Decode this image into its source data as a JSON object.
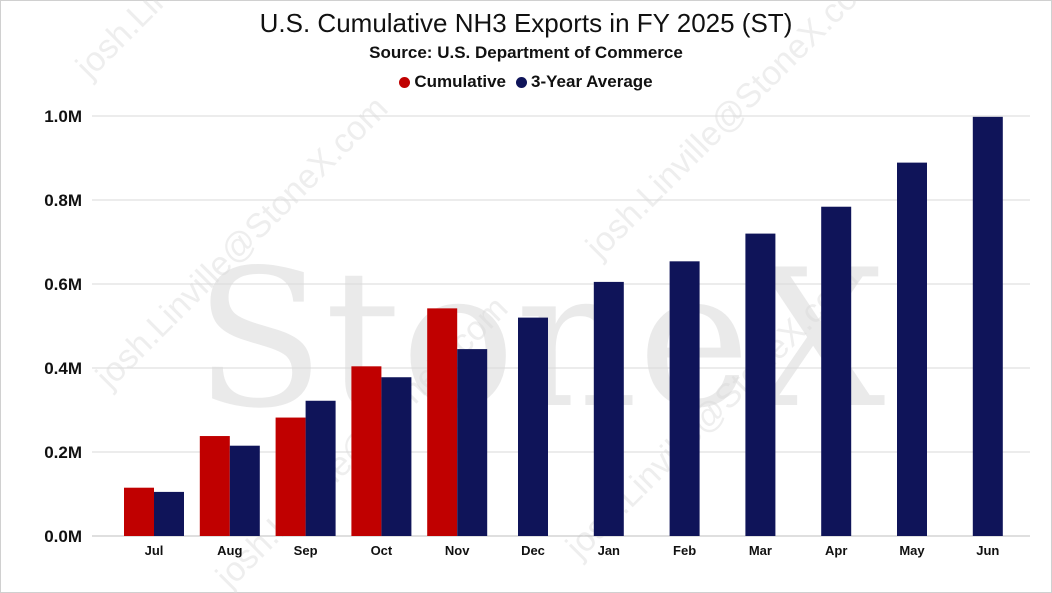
{
  "chart_data": {
    "type": "bar",
    "title": "U.S. Cumulative NH3 Exports in FY 2025 (ST)",
    "subtitle": "Source: U.S. Department of Commerce",
    "categories": [
      "Jul",
      "Aug",
      "Sep",
      "Oct",
      "Nov",
      "Dec",
      "Jan",
      "Feb",
      "Mar",
      "Apr",
      "May",
      "Jun"
    ],
    "series": [
      {
        "name": "Cumulative",
        "color": "#c00000",
        "values": [
          115000,
          238000,
          282000,
          404000,
          542000,
          null,
          null,
          null,
          null,
          null,
          null,
          null
        ]
      },
      {
        "name": "3-Year Average",
        "color": "#0f1459",
        "values": [
          105000,
          215000,
          322000,
          378000,
          445000,
          520000,
          605000,
          654000,
          720000,
          784000,
          889000,
          998000
        ]
      }
    ],
    "ylim": [
      0,
      1000000
    ],
    "yticks": [
      0,
      200000,
      400000,
      600000,
      800000,
      1000000
    ],
    "ytick_labels": [
      "0.0M",
      "0.2M",
      "0.4M",
      "0.6M",
      "0.8M",
      "1.0M"
    ],
    "xlabel": "",
    "ylabel": "",
    "grid": true,
    "legend_position": "top-center"
  },
  "watermark": {
    "brand": "StoneX",
    "email": "josh.Linville@StoneX.com",
    "color": "#d9d9d9"
  }
}
